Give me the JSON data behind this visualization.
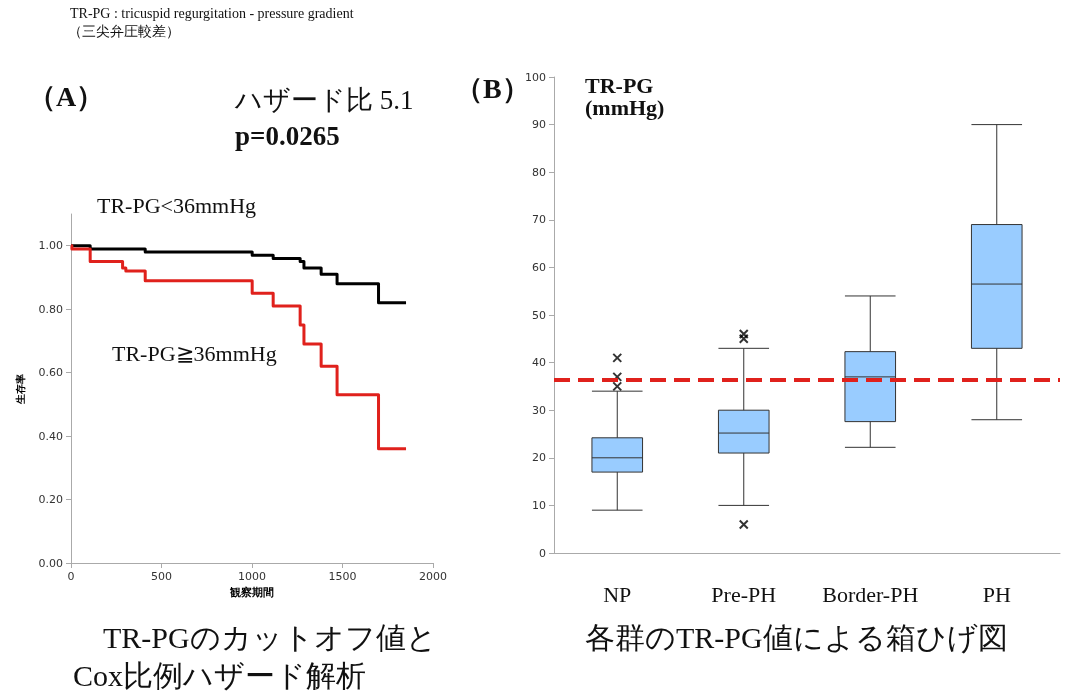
{
  "chart_data": [
    {
      "type": "step",
      "title": "（A）",
      "xlabel": "観察期間",
      "ylabel": "生存率",
      "annotations": [
        "TR-PG : tricuspid regurgitation - pressure gradient",
        "（三尖弁圧較差）",
        "ハザード比 5.1",
        "p=0.0265",
        "TR-PGのカットオフ値と",
        "Cox比例ハザード解析"
      ],
      "series": [
        {
          "name": "TR-PG<36mmHg",
          "color": "#000000",
          "x": [
            0,
            106,
            285,
            410,
            1001,
            1117,
            1266,
            1287,
            1382,
            1470,
            1699,
            1851
          ],
          "values": [
            1.0,
            0.99,
            0.99,
            0.98,
            0.97,
            0.96,
            0.95,
            0.93,
            0.91,
            0.88,
            0.82,
            0.82
          ]
        },
        {
          "name": "TR-PG≧36mmHg",
          "color": "#e0211c",
          "x": [
            0,
            5,
            106,
            285,
            303,
            410,
            1001,
            1117,
            1266,
            1287,
            1382,
            1470,
            1699,
            1851
          ],
          "values": [
            1.0,
            0.99,
            0.95,
            0.93,
            0.92,
            0.89,
            0.85,
            0.81,
            0.75,
            0.69,
            0.62,
            0.53,
            0.36,
            0.36
          ]
        }
      ],
      "xlim": [
        0,
        2000
      ],
      "xticks": [
        0,
        500,
        1000,
        1500,
        2000
      ],
      "ylim": [
        0,
        1.1
      ],
      "yticks": [
        {
          "value": 0,
          "label": "0.00"
        },
        {
          "value": 0.2,
          "label": "0.20"
        },
        {
          "value": 0.4,
          "label": "0.40"
        },
        {
          "value": 0.6,
          "label": "0.60"
        },
        {
          "value": 0.8,
          "label": "0.80"
        },
        {
          "value": 1,
          "label": "1.00"
        }
      ],
      "grid": false,
      "legend": false,
      "marker": "none",
      "line_style": "solid"
    },
    {
      "type": "box",
      "title": "（B）",
      "ylabel": "TR-PG (mmHg)",
      "annotations": [
        "各群のTR-PG値による箱ひげ図"
      ],
      "categories": [
        "NP",
        "Pre-PH",
        "Border-PH",
        "PH"
      ],
      "series": [
        {
          "color": "#99ccff",
          "boxes": [
            {
              "low": 9,
              "q1": 17,
              "median": 20,
              "q3": 24.2,
              "high": 34,
              "outliers": [
                35,
                37,
                41
              ]
            },
            {
              "low": 10,
              "q1": 21,
              "median": 25.2,
              "q3": 30,
              "high": 43,
              "outliers": [
                45,
                46,
                6
              ]
            },
            {
              "low": 22.2,
              "q1": 27.6,
              "median": 37,
              "q3": 42.3,
              "high": 54
            },
            {
              "low": 28,
              "q1": 43,
              "median": 56.5,
              "q3": 69,
              "high": 90
            }
          ]
        }
      ],
      "ylim": [
        0,
        100
      ],
      "yticks": [
        0,
        10,
        20,
        30,
        40,
        50,
        60,
        70,
        80,
        90,
        100
      ],
      "ref_lines": [
        {
          "axis": "y",
          "value": 36.5,
          "color": "#e0211c",
          "line_style": "dashed"
        }
      ],
      "grid": false,
      "legend": false,
      "marker": "cross"
    }
  ]
}
